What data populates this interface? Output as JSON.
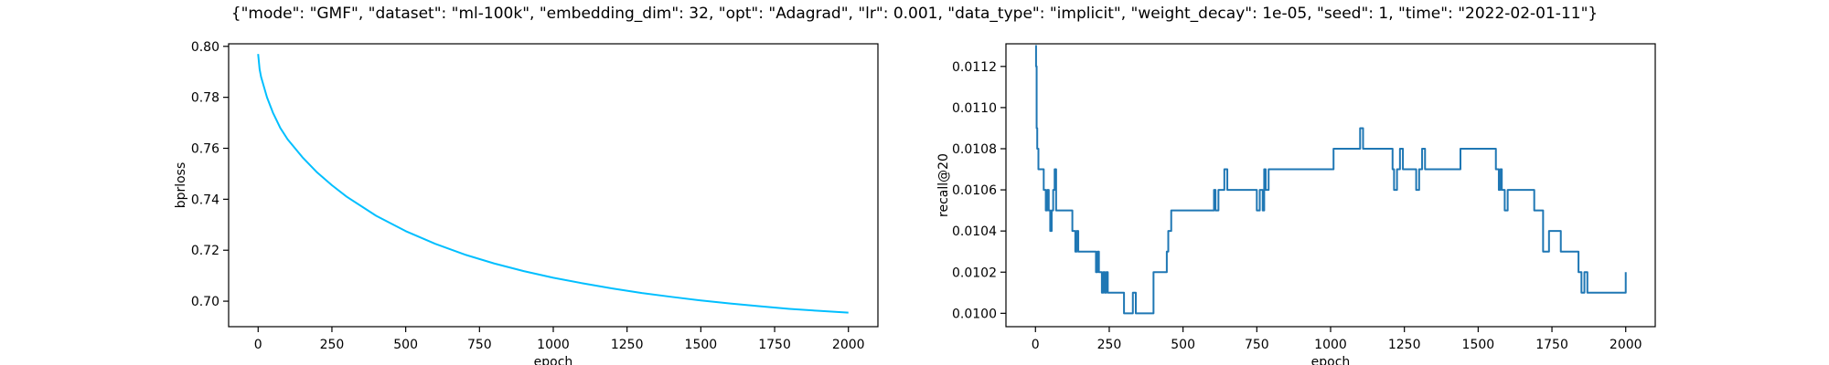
{
  "figure": {
    "suptitle": "{\"mode\": \"GMF\", \"dataset\": \"ml-100k\", \"embedding_dim\": 32, \"opt\": \"Adagrad\", \"lr\": 0.001, \"data_type\": \"implicit\", \"weight_decay\": 1e-05, \"seed\": 1, \"time\": \"2022-02-01-11\"}"
  },
  "chart_data": [
    {
      "type": "line",
      "xlabel": "epoch",
      "ylabel": "bprloss",
      "xlim": [
        -100,
        2100
      ],
      "ylim": [
        0.69,
        0.801
      ],
      "xticks": [
        0,
        250,
        500,
        750,
        1000,
        1250,
        1500,
        1750,
        2000
      ],
      "yticks": [
        0.7,
        0.72,
        0.74,
        0.76,
        0.78,
        0.8
      ],
      "ytick_labels": [
        "0.70",
        "0.72",
        "0.74",
        "0.76",
        "0.78",
        "0.80"
      ],
      "grid": false,
      "legend": "none",
      "series": [
        {
          "color": "#00bfff",
          "step": false,
          "x": [
            0,
            5,
            10,
            20,
            30,
            50,
            75,
            100,
            150,
            200,
            250,
            300,
            400,
            500,
            600,
            700,
            800,
            900,
            1000,
            1100,
            1200,
            1300,
            1400,
            1500,
            1600,
            1700,
            1800,
            1900,
            2000
          ],
          "y": [
            0.797,
            0.791,
            0.788,
            0.784,
            0.78,
            0.774,
            0.768,
            0.7635,
            0.7565,
            0.7505,
            0.7455,
            0.741,
            0.7335,
            0.7275,
            0.7225,
            0.7183,
            0.7148,
            0.7118,
            0.7092,
            0.707,
            0.705,
            0.7032,
            0.7017,
            0.7003,
            0.6991,
            0.698,
            0.697,
            0.6962,
            0.6955
          ]
        }
      ]
    },
    {
      "type": "line",
      "xlabel": "epoch",
      "ylabel": "recall@20",
      "xlim": [
        -100,
        2100
      ],
      "ylim": [
        0.09993,
        0.01131
      ],
      "ylim_note": "",
      "xticks": [
        0,
        250,
        500,
        750,
        1000,
        1250,
        1500,
        1750,
        2000
      ],
      "yticks": [
        0.01,
        0.0102,
        0.0104,
        0.0106,
        0.0108,
        0.011,
        0.0112
      ],
      "ytick_labels": [
        "0.0100",
        "0.0102",
        "0.0104",
        "0.0106",
        "0.0108",
        "0.0110",
        "0.0112"
      ],
      "grid": false,
      "legend": "none",
      "series": [
        {
          "color": "#1f77b4",
          "step": true,
          "x": [
            0,
            2,
            4,
            6,
            8,
            10,
            14,
            18,
            22,
            28,
            35,
            40,
            45,
            50,
            55,
            60,
            65,
            70,
            75,
            100,
            125,
            130,
            135,
            140,
            145,
            150,
            200,
            205,
            210,
            215,
            220,
            225,
            230,
            235,
            240,
            245,
            250,
            270,
            300,
            320,
            330,
            340,
            370,
            400,
            440,
            445,
            450,
            460,
            480,
            500,
            530,
            560,
            600,
            605,
            610,
            620,
            630,
            640,
            650,
            700,
            750,
            760,
            770,
            775,
            780,
            790,
            800,
            850,
            900,
            950,
            1000,
            1010,
            1080,
            1100,
            1110,
            1150,
            1200,
            1210,
            1215,
            1225,
            1230,
            1235,
            1245,
            1250,
            1280,
            1290,
            1300,
            1310,
            1320,
            1350,
            1430,
            1440,
            1500,
            1550,
            1560,
            1570,
            1575,
            1580,
            1590,
            1600,
            1610,
            1620,
            1625,
            1630,
            1660,
            1690,
            1700,
            1720,
            1740,
            1780,
            1800,
            1840,
            1850,
            1860,
            1870,
            1900,
            1950,
            1990,
            2000
          ],
          "y": [
            0.0113,
            0.0112,
            0.0109,
            0.0108,
            0.0108,
            0.0107,
            0.0107,
            0.0107,
            0.0107,
            0.0106,
            0.0105,
            0.0106,
            0.0105,
            0.0104,
            0.0105,
            0.0106,
            0.0107,
            0.0105,
            0.0105,
            0.0105,
            0.0104,
            0.0104,
            0.0103,
            0.0104,
            0.0103,
            0.0103,
            0.0103,
            0.0102,
            0.0103,
            0.0102,
            0.0102,
            0.0101,
            0.0102,
            0.0101,
            0.0102,
            0.0101,
            0.0101,
            0.0101,
            0.01,
            0.01,
            0.0101,
            0.01,
            0.01,
            0.0102,
            0.0102,
            0.0103,
            0.0104,
            0.0105,
            0.0105,
            0.0105,
            0.0105,
            0.0105,
            0.0105,
            0.0106,
            0.0105,
            0.0106,
            0.0106,
            0.0107,
            0.0106,
            0.0106,
            0.0105,
            0.0106,
            0.0105,
            0.0107,
            0.0106,
            0.0107,
            0.0107,
            0.0107,
            0.0107,
            0.0107,
            0.0107,
            0.0108,
            0.0108,
            0.0109,
            0.0108,
            0.0108,
            0.0108,
            0.0107,
            0.0106,
            0.0107,
            0.0107,
            0.0108,
            0.0107,
            0.0107,
            0.0107,
            0.0106,
            0.0107,
            0.0108,
            0.0107,
            0.0107,
            0.0107,
            0.0108,
            0.0108,
            0.0108,
            0.0107,
            0.0106,
            0.0107,
            0.0106,
            0.0105,
            0.0106,
            0.0106,
            0.0106,
            0.0106,
            0.0106,
            0.0106,
            0.0105,
            0.0105,
            0.0103,
            0.0104,
            0.0103,
            0.0103,
            0.0102,
            0.0101,
            0.0102,
            0.0101,
            0.0101,
            0.0101,
            0.0101,
            0.0102
          ]
        }
      ]
    }
  ]
}
